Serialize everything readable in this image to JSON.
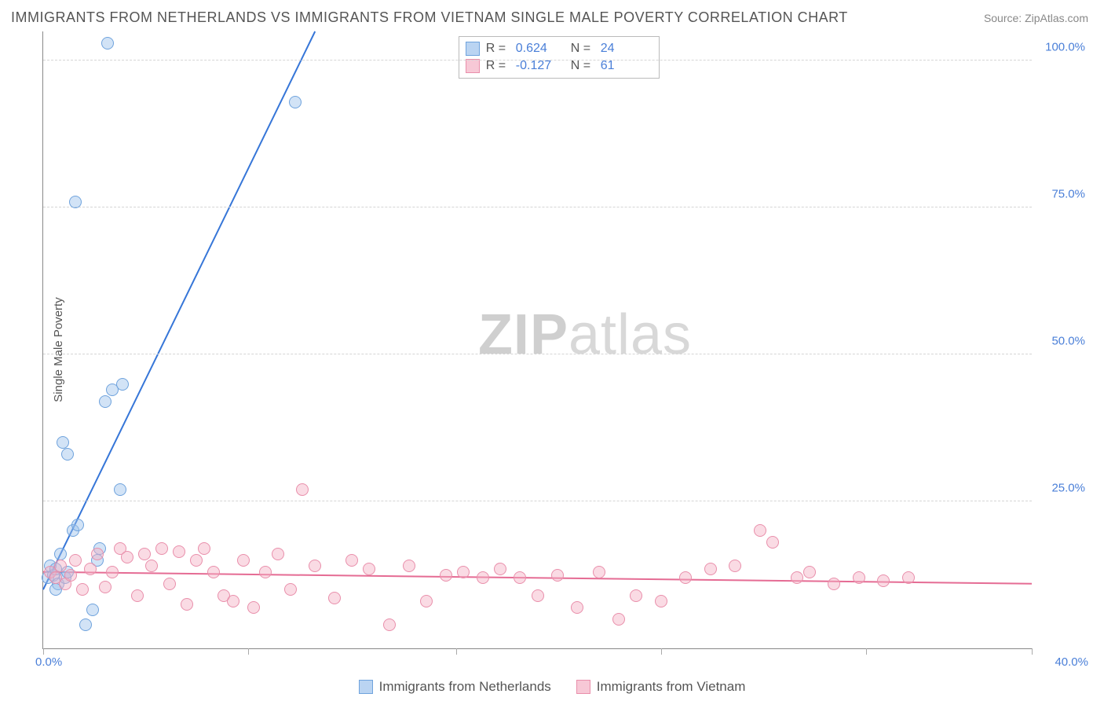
{
  "title": "IMMIGRANTS FROM NETHERLANDS VS IMMIGRANTS FROM VIETNAM SINGLE MALE POVERTY CORRELATION CHART",
  "source": "Source: ZipAtlas.com",
  "ylabel": "Single Male Poverty",
  "watermark_a": "ZIP",
  "watermark_b": "atlas",
  "chart": {
    "type": "scatter",
    "x_min": 0,
    "x_max": 40,
    "y_min": 0,
    "y_max": 105,
    "x_tick_positions": [
      0,
      8.3,
      16.7,
      25,
      33.3,
      40
    ],
    "x_tick_labels": {
      "left": "0.0%",
      "right": "40.0%"
    },
    "y_ticks": [
      25,
      50,
      75,
      100
    ],
    "y_tick_labels": [
      "25.0%",
      "50.0%",
      "75.0%",
      "100.0%"
    ],
    "grid_color": "#d5d5d5",
    "axis_color": "#888",
    "series": [
      {
        "name": "Immigrants from Netherlands",
        "legend_label": "Immigrants from Netherlands",
        "marker_class": "blue",
        "marker_fill": "rgba(156,194,236,0.45)",
        "marker_stroke": "#6fa3dd",
        "line_color": "#3676d8",
        "line_width": 2,
        "R": "0.624",
        "N": "24",
        "trend": {
          "x1": 0,
          "y1": 10,
          "x2": 11,
          "y2": 105
        },
        "points": [
          [
            0.2,
            12
          ],
          [
            0.3,
            14
          ],
          [
            0.4,
            12.5
          ],
          [
            0.5,
            13.5
          ],
          [
            0.6,
            11
          ],
          [
            0.7,
            16
          ],
          [
            0.8,
            35
          ],
          [
            1.0,
            33
          ],
          [
            1.2,
            20
          ],
          [
            1.4,
            21
          ],
          [
            1.7,
            4
          ],
          [
            2.0,
            6.5
          ],
          [
            2.2,
            15
          ],
          [
            2.3,
            17
          ],
          [
            2.5,
            42
          ],
          [
            2.8,
            44
          ],
          [
            3.2,
            45
          ],
          [
            3.1,
            27
          ],
          [
            1.3,
            76
          ],
          [
            2.6,
            103
          ],
          [
            10.2,
            93
          ],
          [
            0.9,
            12
          ],
          [
            0.5,
            10
          ],
          [
            1.0,
            13
          ]
        ]
      },
      {
        "name": "Immigrants from Vietnam",
        "legend_label": "Immigrants from Vietnam",
        "marker_class": "pink",
        "marker_fill": "rgba(244,176,196,0.45)",
        "marker_stroke": "#e98fab",
        "line_color": "#e56c94",
        "line_width": 2,
        "R": "-0.127",
        "N": "61",
        "trend": {
          "x1": 0,
          "y1": 13,
          "x2": 40,
          "y2": 11
        },
        "points": [
          [
            0.3,
            13
          ],
          [
            0.5,
            12
          ],
          [
            0.7,
            14
          ],
          [
            0.9,
            11
          ],
          [
            1.1,
            12.5
          ],
          [
            1.3,
            15
          ],
          [
            1.6,
            10
          ],
          [
            1.9,
            13.5
          ],
          [
            2.2,
            16
          ],
          [
            2.5,
            10.5
          ],
          [
            2.8,
            13
          ],
          [
            3.1,
            17
          ],
          [
            3.4,
            15.5
          ],
          [
            3.8,
            9
          ],
          [
            4.1,
            16
          ],
          [
            4.4,
            14
          ],
          [
            4.8,
            17
          ],
          [
            5.1,
            11
          ],
          [
            5.5,
            16.5
          ],
          [
            5.8,
            7.5
          ],
          [
            6.2,
            15
          ],
          [
            6.5,
            17
          ],
          [
            6.9,
            13
          ],
          [
            7.3,
            9
          ],
          [
            7.7,
            8
          ],
          [
            8.1,
            15
          ],
          [
            8.5,
            7
          ],
          [
            9.0,
            13
          ],
          [
            9.5,
            16
          ],
          [
            10,
            10
          ],
          [
            10.5,
            27
          ],
          [
            11,
            14
          ],
          [
            11.8,
            8.5
          ],
          [
            12.5,
            15
          ],
          [
            13.2,
            13.5
          ],
          [
            14,
            4
          ],
          [
            14.8,
            14
          ],
          [
            15.5,
            8
          ],
          [
            16.3,
            12.5
          ],
          [
            17,
            13
          ],
          [
            17.8,
            12
          ],
          [
            18.5,
            13.5
          ],
          [
            19.3,
            12
          ],
          [
            20,
            9
          ],
          [
            20.8,
            12.5
          ],
          [
            21.6,
            7
          ],
          [
            22.5,
            13
          ],
          [
            23.3,
            5
          ],
          [
            24,
            9
          ],
          [
            25,
            8
          ],
          [
            26,
            12
          ],
          [
            27,
            13.5
          ],
          [
            28,
            14
          ],
          [
            29,
            20
          ],
          [
            29.5,
            18
          ],
          [
            30.5,
            12
          ],
          [
            31,
            13
          ],
          [
            32,
            11
          ],
          [
            33,
            12
          ],
          [
            34,
            11.5
          ],
          [
            35,
            12
          ]
        ]
      }
    ]
  },
  "stats_legend": {
    "R_label": "R  =",
    "N_label": "N  ="
  }
}
